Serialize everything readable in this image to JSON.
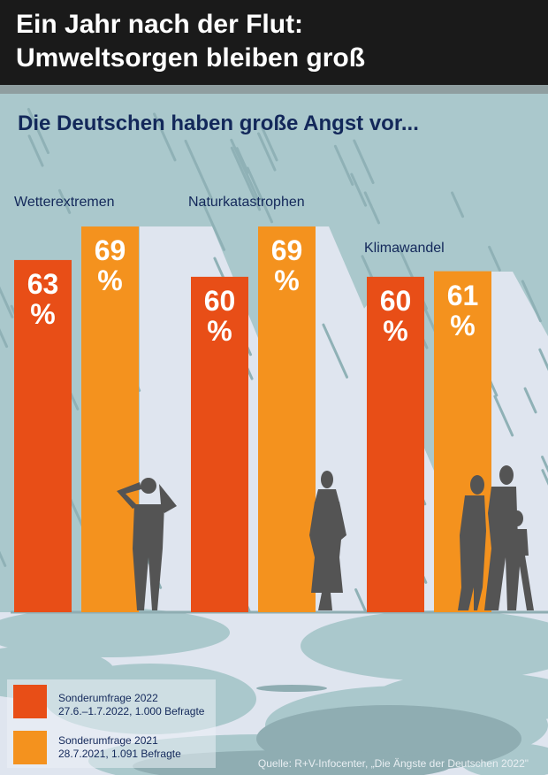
{
  "header": {
    "title_line1": "Ein Jahr nach der Flut:",
    "title_line2": "Umweltsorgen bleiben groß"
  },
  "colors": {
    "series_2022": "#e84e17",
    "series_2021": "#f4921e",
    "title_text": "#13285a",
    "background": "#aac8cc",
    "silhouette": "#545454"
  },
  "chart_data": {
    "type": "bar",
    "title": "Die Deutschen haben große Angst vor...",
    "categories": [
      "Wetterextremen",
      "Naturkatastrophen",
      "Klimawandel"
    ],
    "series": [
      {
        "name": "Sonderumfrage 2022",
        "detail": "27.6.–1.7.2022, 1.000 Befragte",
        "values": [
          63,
          60,
          60
        ]
      },
      {
        "name": "Sonderumfrage 2021",
        "detail": "28.7.2021, 1.091 Befragte",
        "values": [
          69,
          69,
          61
        ]
      }
    ],
    "unit": "%",
    "xlabel": "",
    "ylabel": "",
    "grid": false,
    "legend": "bottom-left",
    "data_labels": [
      [
        "63",
        "%"
      ],
      [
        "60",
        "%"
      ],
      [
        "60",
        "%"
      ],
      [
        "69",
        "%"
      ],
      [
        "69",
        "%"
      ],
      [
        "61",
        "%"
      ]
    ]
  },
  "legend": {
    "items": [
      {
        "label": "Sonderumfrage 2022",
        "detail": "27.6.–1.7.2022, 1.000 Befragte"
      },
      {
        "label": "Sonderumfrage 2021",
        "detail": "28.7.2021, 1.091 Befragte"
      }
    ]
  },
  "source": "Quelle: R+V-Infocenter, „Die Ängste der Deutschen 2022\""
}
